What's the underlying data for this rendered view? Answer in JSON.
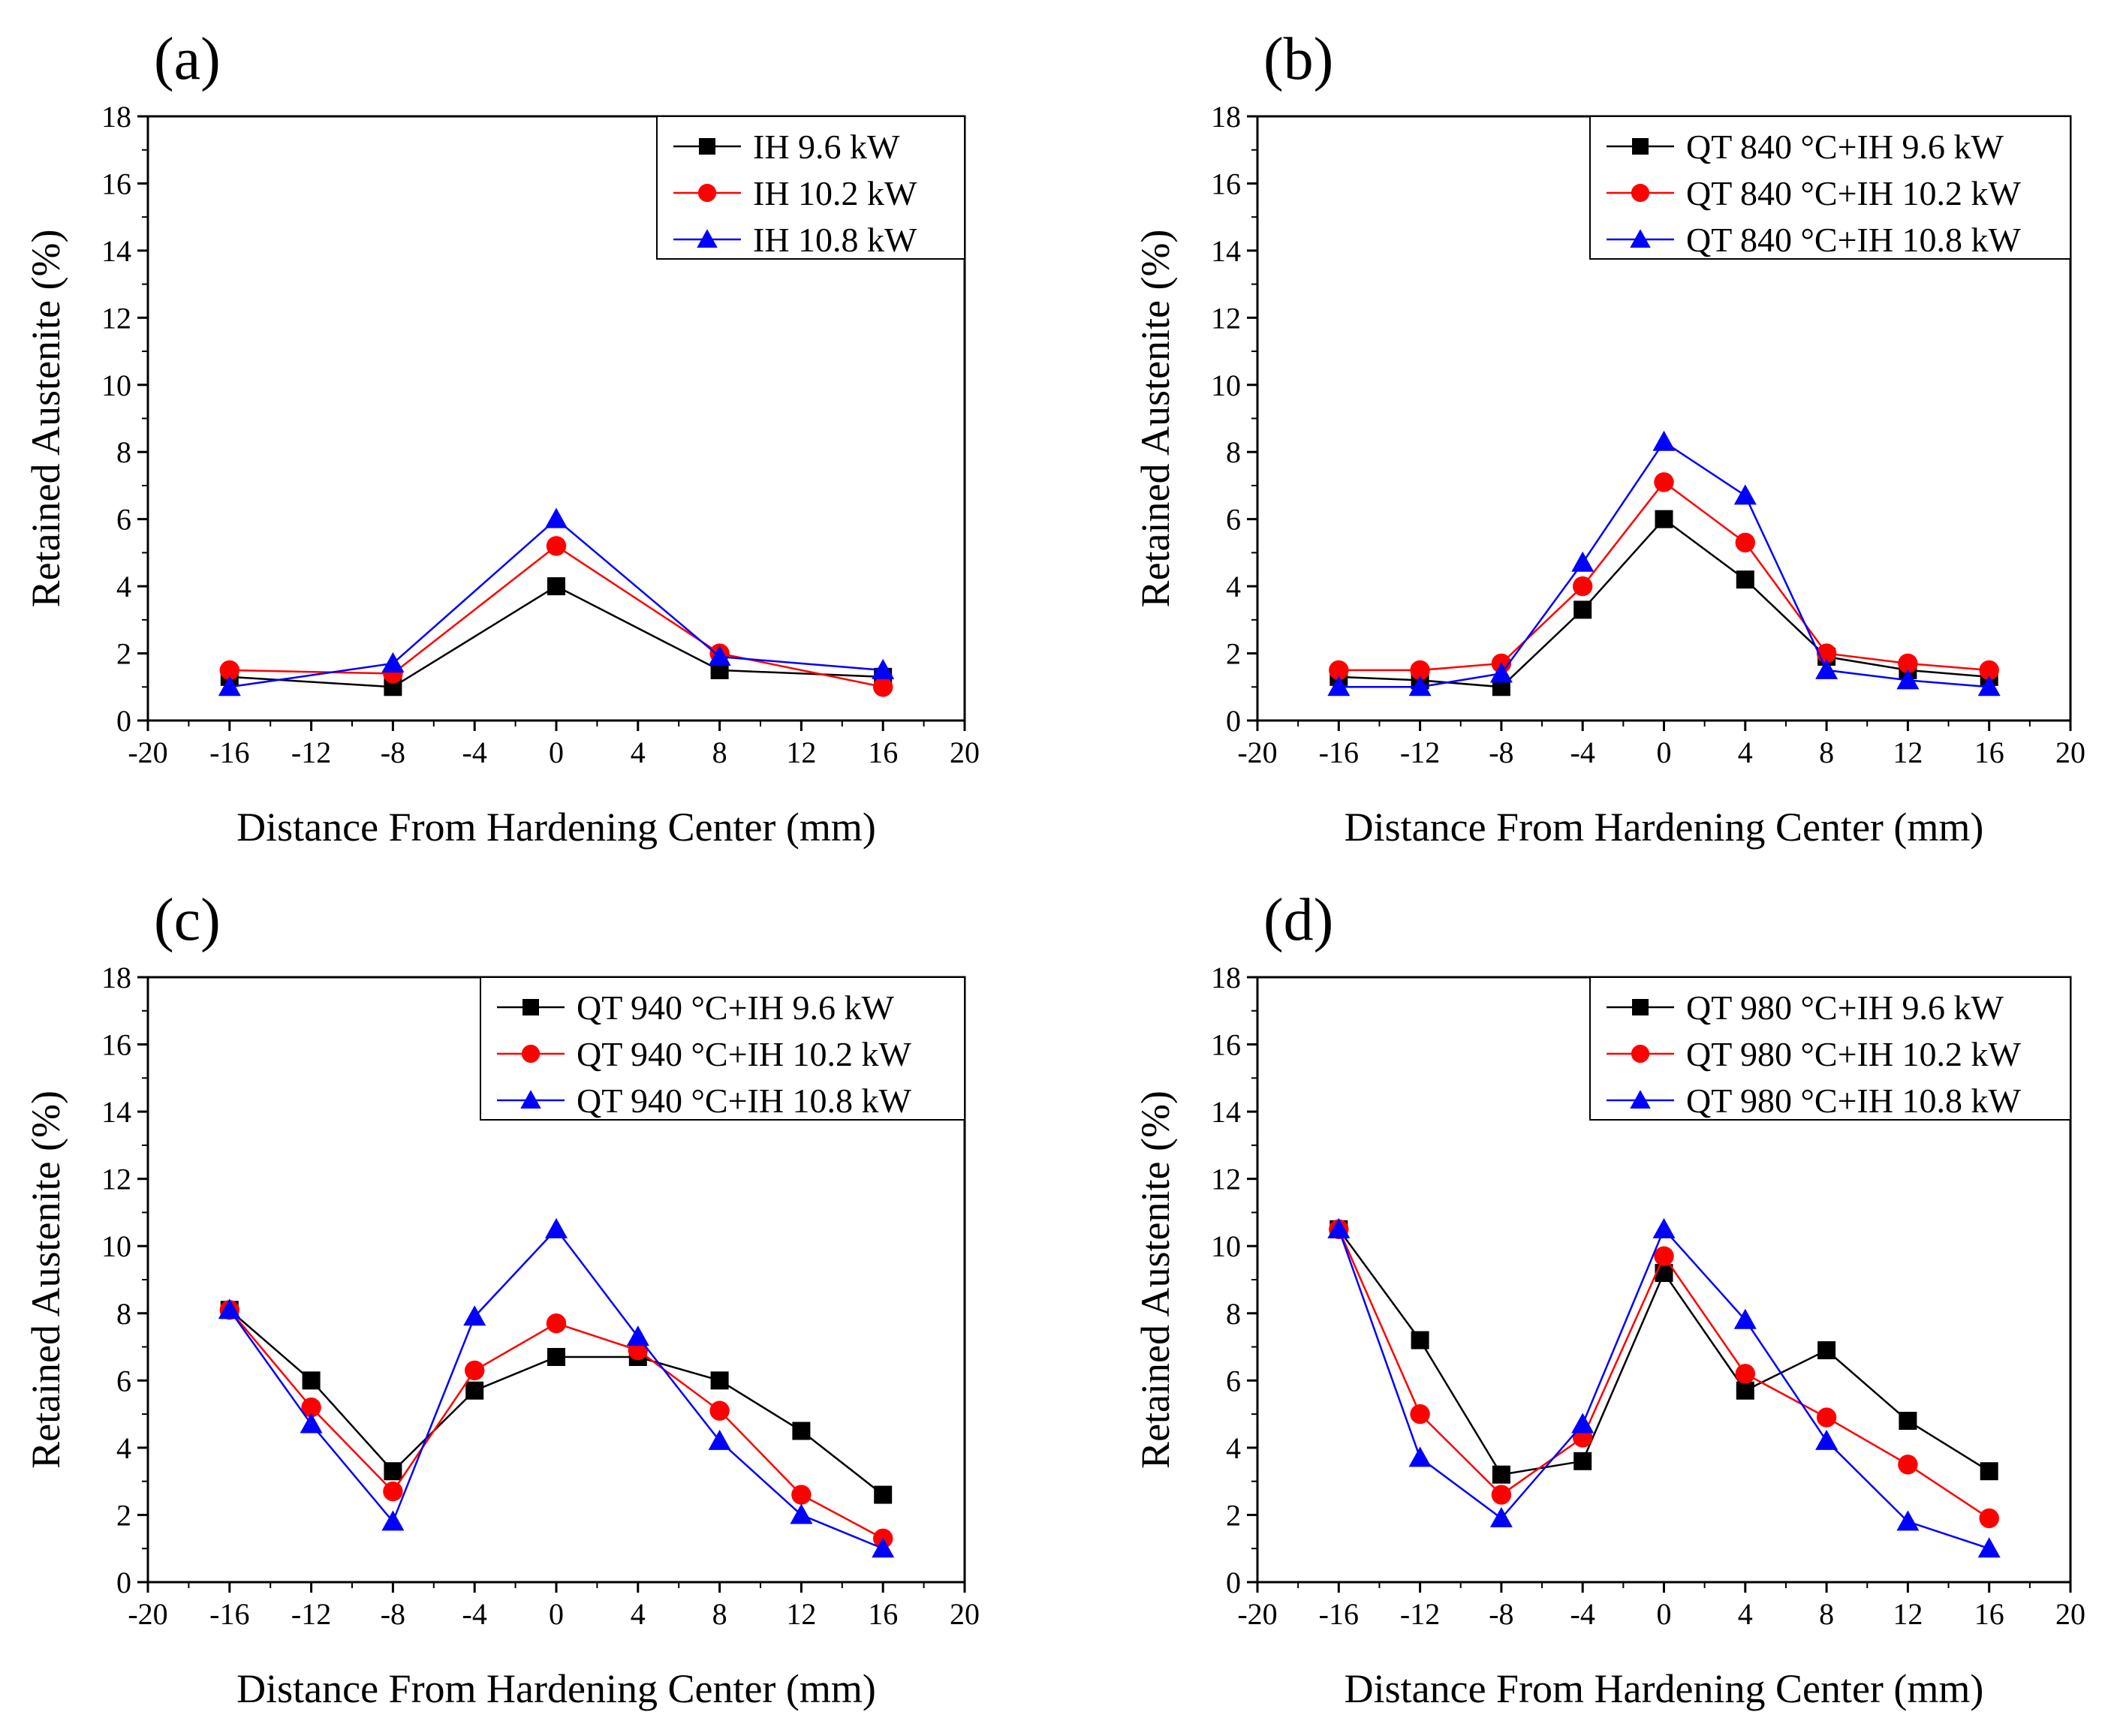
{
  "figure": {
    "colors": {
      "black": "#000000",
      "red": "#ff0000",
      "blue": "#0000ff"
    }
  },
  "chart_data": [
    {
      "type": "line",
      "panel_label": "(a)",
      "xlabel": "Distance From Hardening Center (mm)",
      "ylabel": "Retained Austenite (%)",
      "xlim": [
        -20,
        20
      ],
      "ylim": [
        0,
        18
      ],
      "xticks": [
        -20,
        -16,
        -12,
        -8,
        -4,
        0,
        4,
        8,
        12,
        16,
        20
      ],
      "yticks": [
        0,
        2,
        4,
        6,
        8,
        10,
        12,
        14,
        16,
        18
      ],
      "legend_position": "top-right",
      "series": [
        {
          "name": "IH 9.6 kW",
          "color": "#000000",
          "marker": "square",
          "x": [
            -16,
            -8,
            0,
            8,
            16
          ],
          "values": [
            1.3,
            1.0,
            4.0,
            1.5,
            1.3
          ]
        },
        {
          "name": "IH 10.2 kW",
          "color": "#ff0000",
          "marker": "circle",
          "x": [
            -16,
            -8,
            0,
            8,
            16
          ],
          "values": [
            1.5,
            1.4,
            5.2,
            2.0,
            1.0
          ]
        },
        {
          "name": "IH 10.8 kW",
          "color": "#0000ff",
          "marker": "triangle",
          "x": [
            -16,
            -8,
            0,
            8,
            16
          ],
          "values": [
            1.0,
            1.7,
            6.0,
            1.9,
            1.5
          ]
        }
      ]
    },
    {
      "type": "line",
      "panel_label": "(b)",
      "xlabel": "Distance From Hardening Center (mm)",
      "ylabel": "Retained Austenite (%)",
      "xlim": [
        -20,
        20
      ],
      "ylim": [
        0,
        18
      ],
      "xticks": [
        -20,
        -16,
        -12,
        -8,
        -4,
        0,
        4,
        8,
        12,
        16,
        20
      ],
      "yticks": [
        0,
        2,
        4,
        6,
        8,
        10,
        12,
        14,
        16,
        18
      ],
      "legend_position": "top-right",
      "series": [
        {
          "name": "QT 840 °C+IH 9.6 kW",
          "color": "#000000",
          "marker": "square",
          "x": [
            -16,
            -12,
            -8,
            -4,
            0,
            4,
            8,
            12,
            16
          ],
          "values": [
            1.3,
            1.2,
            1.0,
            3.3,
            6.0,
            4.2,
            1.9,
            1.5,
            1.3
          ]
        },
        {
          "name": "QT 840 °C+IH 10.2 kW",
          "color": "#ff0000",
          "marker": "circle",
          "x": [
            -16,
            -12,
            -8,
            -4,
            0,
            4,
            8,
            12,
            16
          ],
          "values": [
            1.5,
            1.5,
            1.7,
            4.0,
            7.1,
            5.3,
            2.0,
            1.7,
            1.5
          ]
        },
        {
          "name": "QT 840 °C+IH 10.8 kW",
          "color": "#0000ff",
          "marker": "triangle",
          "x": [
            -16,
            -12,
            -8,
            -4,
            0,
            4,
            8,
            12,
            16
          ],
          "values": [
            1.0,
            1.0,
            1.4,
            4.7,
            8.3,
            6.7,
            1.5,
            1.2,
            1.0
          ]
        }
      ]
    },
    {
      "type": "line",
      "panel_label": "(c)",
      "xlabel": "Distance From Hardening Center (mm)",
      "ylabel": "Retained Austenite (%)",
      "xlim": [
        -20,
        20
      ],
      "ylim": [
        0,
        18
      ],
      "xticks": [
        -20,
        -16,
        -12,
        -8,
        -4,
        0,
        4,
        8,
        12,
        16,
        20
      ],
      "yticks": [
        0,
        2,
        4,
        6,
        8,
        10,
        12,
        14,
        16,
        18
      ],
      "legend_position": "top-right",
      "series": [
        {
          "name": "QT 940 °C+IH 9.6 kW",
          "color": "#000000",
          "marker": "square",
          "x": [
            -16,
            -12,
            -8,
            -4,
            0,
            4,
            8,
            12,
            16
          ],
          "values": [
            8.1,
            6.0,
            3.3,
            5.7,
            6.7,
            6.7,
            6.0,
            4.5,
            2.6
          ]
        },
        {
          "name": "QT 940 °C+IH 10.2 kW",
          "color": "#ff0000",
          "marker": "circle",
          "x": [
            -16,
            -12,
            -8,
            -4,
            0,
            4,
            8,
            12,
            16
          ],
          "values": [
            8.1,
            5.2,
            2.7,
            6.3,
            7.7,
            6.9,
            5.1,
            2.6,
            1.3
          ]
        },
        {
          "name": "QT 940 °C+IH 10.8 kW",
          "color": "#0000ff",
          "marker": "triangle",
          "x": [
            -16,
            -12,
            -8,
            -4,
            0,
            4,
            8,
            12,
            16
          ],
          "values": [
            8.1,
            4.7,
            1.8,
            7.9,
            10.5,
            7.3,
            4.2,
            2.0,
            1.0
          ]
        }
      ]
    },
    {
      "type": "line",
      "panel_label": "(d)",
      "xlabel": "Distance From Hardening Center (mm)",
      "ylabel": "Retained Austenite (%)",
      "xlim": [
        -20,
        20
      ],
      "ylim": [
        0,
        18
      ],
      "xticks": [
        -20,
        -16,
        -12,
        -8,
        -4,
        0,
        4,
        8,
        12,
        16,
        20
      ],
      "yticks": [
        0,
        2,
        4,
        6,
        8,
        10,
        12,
        14,
        16,
        18
      ],
      "legend_position": "top-right",
      "series": [
        {
          "name": "QT 980 °C+IH 9.6 kW",
          "color": "#000000",
          "marker": "square",
          "x": [
            -16,
            -12,
            -8,
            -4,
            0,
            4,
            8,
            12,
            16
          ],
          "values": [
            10.5,
            7.2,
            3.2,
            3.6,
            9.2,
            5.7,
            6.9,
            4.8,
            3.3
          ]
        },
        {
          "name": "QT 980 °C+IH 10.2 kW",
          "color": "#ff0000",
          "marker": "circle",
          "x": [
            -16,
            -12,
            -8,
            -4,
            0,
            4,
            8,
            12,
            16
          ],
          "values": [
            10.5,
            5.0,
            2.6,
            4.3,
            9.7,
            6.2,
            4.9,
            3.5,
            1.9
          ]
        },
        {
          "name": "QT 980 °C+IH 10.8 kW",
          "color": "#0000ff",
          "marker": "triangle",
          "x": [
            -16,
            -12,
            -8,
            -4,
            0,
            4,
            8,
            12,
            16
          ],
          "values": [
            10.5,
            3.7,
            1.9,
            4.7,
            10.5,
            7.8,
            4.2,
            1.8,
            1.0
          ]
        }
      ]
    }
  ]
}
